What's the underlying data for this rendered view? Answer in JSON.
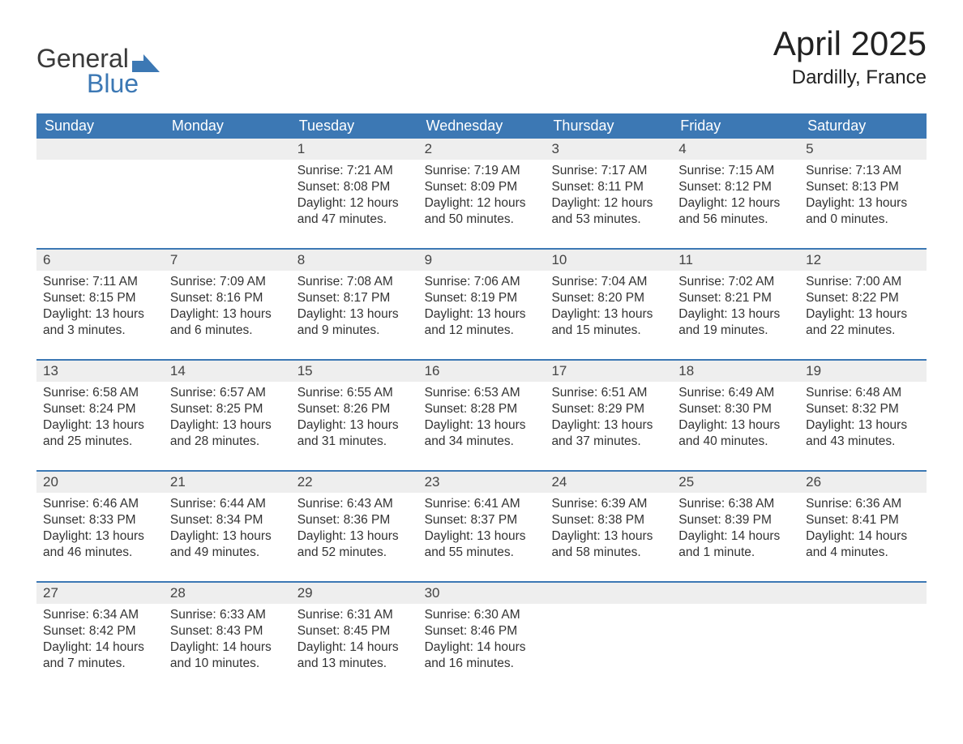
{
  "logo": {
    "general": "General",
    "blue": "Blue"
  },
  "title": "April 2025",
  "location": "Dardilly, France",
  "weekdays": [
    "Sunday",
    "Monday",
    "Tuesday",
    "Wednesday",
    "Thursday",
    "Friday",
    "Saturday"
  ],
  "colors": {
    "header_bg": "#3c78b4",
    "header_text": "#ffffff",
    "daynum_bg": "#eeeeee",
    "border": "#3c78b4",
    "logo_blue": "#3c78b4",
    "text": "#333333"
  },
  "weeks": [
    [
      {},
      {},
      {
        "n": "1",
        "sunrise": "Sunrise: 7:21 AM",
        "sunset": "Sunset: 8:08 PM",
        "dl1": "Daylight: 12 hours",
        "dl2": "and 47 minutes."
      },
      {
        "n": "2",
        "sunrise": "Sunrise: 7:19 AM",
        "sunset": "Sunset: 8:09 PM",
        "dl1": "Daylight: 12 hours",
        "dl2": "and 50 minutes."
      },
      {
        "n": "3",
        "sunrise": "Sunrise: 7:17 AM",
        "sunset": "Sunset: 8:11 PM",
        "dl1": "Daylight: 12 hours",
        "dl2": "and 53 minutes."
      },
      {
        "n": "4",
        "sunrise": "Sunrise: 7:15 AM",
        "sunset": "Sunset: 8:12 PM",
        "dl1": "Daylight: 12 hours",
        "dl2": "and 56 minutes."
      },
      {
        "n": "5",
        "sunrise": "Sunrise: 7:13 AM",
        "sunset": "Sunset: 8:13 PM",
        "dl1": "Daylight: 13 hours",
        "dl2": "and 0 minutes."
      }
    ],
    [
      {
        "n": "6",
        "sunrise": "Sunrise: 7:11 AM",
        "sunset": "Sunset: 8:15 PM",
        "dl1": "Daylight: 13 hours",
        "dl2": "and 3 minutes."
      },
      {
        "n": "7",
        "sunrise": "Sunrise: 7:09 AM",
        "sunset": "Sunset: 8:16 PM",
        "dl1": "Daylight: 13 hours",
        "dl2": "and 6 minutes."
      },
      {
        "n": "8",
        "sunrise": "Sunrise: 7:08 AM",
        "sunset": "Sunset: 8:17 PM",
        "dl1": "Daylight: 13 hours",
        "dl2": "and 9 minutes."
      },
      {
        "n": "9",
        "sunrise": "Sunrise: 7:06 AM",
        "sunset": "Sunset: 8:19 PM",
        "dl1": "Daylight: 13 hours",
        "dl2": "and 12 minutes."
      },
      {
        "n": "10",
        "sunrise": "Sunrise: 7:04 AM",
        "sunset": "Sunset: 8:20 PM",
        "dl1": "Daylight: 13 hours",
        "dl2": "and 15 minutes."
      },
      {
        "n": "11",
        "sunrise": "Sunrise: 7:02 AM",
        "sunset": "Sunset: 8:21 PM",
        "dl1": "Daylight: 13 hours",
        "dl2": "and 19 minutes."
      },
      {
        "n": "12",
        "sunrise": "Sunrise: 7:00 AM",
        "sunset": "Sunset: 8:22 PM",
        "dl1": "Daylight: 13 hours",
        "dl2": "and 22 minutes."
      }
    ],
    [
      {
        "n": "13",
        "sunrise": "Sunrise: 6:58 AM",
        "sunset": "Sunset: 8:24 PM",
        "dl1": "Daylight: 13 hours",
        "dl2": "and 25 minutes."
      },
      {
        "n": "14",
        "sunrise": "Sunrise: 6:57 AM",
        "sunset": "Sunset: 8:25 PM",
        "dl1": "Daylight: 13 hours",
        "dl2": "and 28 minutes."
      },
      {
        "n": "15",
        "sunrise": "Sunrise: 6:55 AM",
        "sunset": "Sunset: 8:26 PM",
        "dl1": "Daylight: 13 hours",
        "dl2": "and 31 minutes."
      },
      {
        "n": "16",
        "sunrise": "Sunrise: 6:53 AM",
        "sunset": "Sunset: 8:28 PM",
        "dl1": "Daylight: 13 hours",
        "dl2": "and 34 minutes."
      },
      {
        "n": "17",
        "sunrise": "Sunrise: 6:51 AM",
        "sunset": "Sunset: 8:29 PM",
        "dl1": "Daylight: 13 hours",
        "dl2": "and 37 minutes."
      },
      {
        "n": "18",
        "sunrise": "Sunrise: 6:49 AM",
        "sunset": "Sunset: 8:30 PM",
        "dl1": "Daylight: 13 hours",
        "dl2": "and 40 minutes."
      },
      {
        "n": "19",
        "sunrise": "Sunrise: 6:48 AM",
        "sunset": "Sunset: 8:32 PM",
        "dl1": "Daylight: 13 hours",
        "dl2": "and 43 minutes."
      }
    ],
    [
      {
        "n": "20",
        "sunrise": "Sunrise: 6:46 AM",
        "sunset": "Sunset: 8:33 PM",
        "dl1": "Daylight: 13 hours",
        "dl2": "and 46 minutes."
      },
      {
        "n": "21",
        "sunrise": "Sunrise: 6:44 AM",
        "sunset": "Sunset: 8:34 PM",
        "dl1": "Daylight: 13 hours",
        "dl2": "and 49 minutes."
      },
      {
        "n": "22",
        "sunrise": "Sunrise: 6:43 AM",
        "sunset": "Sunset: 8:36 PM",
        "dl1": "Daylight: 13 hours",
        "dl2": "and 52 minutes."
      },
      {
        "n": "23",
        "sunrise": "Sunrise: 6:41 AM",
        "sunset": "Sunset: 8:37 PM",
        "dl1": "Daylight: 13 hours",
        "dl2": "and 55 minutes."
      },
      {
        "n": "24",
        "sunrise": "Sunrise: 6:39 AM",
        "sunset": "Sunset: 8:38 PM",
        "dl1": "Daylight: 13 hours",
        "dl2": "and 58 minutes."
      },
      {
        "n": "25",
        "sunrise": "Sunrise: 6:38 AM",
        "sunset": "Sunset: 8:39 PM",
        "dl1": "Daylight: 14 hours",
        "dl2": "and 1 minute."
      },
      {
        "n": "26",
        "sunrise": "Sunrise: 6:36 AM",
        "sunset": "Sunset: 8:41 PM",
        "dl1": "Daylight: 14 hours",
        "dl2": "and 4 minutes."
      }
    ],
    [
      {
        "n": "27",
        "sunrise": "Sunrise: 6:34 AM",
        "sunset": "Sunset: 8:42 PM",
        "dl1": "Daylight: 14 hours",
        "dl2": "and 7 minutes."
      },
      {
        "n": "28",
        "sunrise": "Sunrise: 6:33 AM",
        "sunset": "Sunset: 8:43 PM",
        "dl1": "Daylight: 14 hours",
        "dl2": "and 10 minutes."
      },
      {
        "n": "29",
        "sunrise": "Sunrise: 6:31 AM",
        "sunset": "Sunset: 8:45 PM",
        "dl1": "Daylight: 14 hours",
        "dl2": "and 13 minutes."
      },
      {
        "n": "30",
        "sunrise": "Sunrise: 6:30 AM",
        "sunset": "Sunset: 8:46 PM",
        "dl1": "Daylight: 14 hours",
        "dl2": "and 16 minutes."
      },
      {},
      {},
      {}
    ]
  ]
}
